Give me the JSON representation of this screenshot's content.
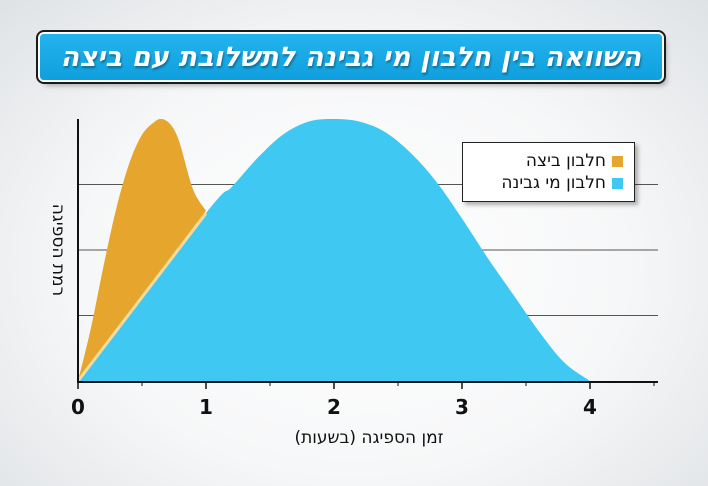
{
  "title": "השוואה בין חלבון מי גבינה לתשלובת עם ביצה",
  "chart_data": {
    "type": "area",
    "xlabel": "זמן הספיגה (בשעות)",
    "ylabel": "רמת הספיגה",
    "xlim": [
      0,
      4.5
    ],
    "ylim": [
      0,
      1
    ],
    "x_ticks": [
      "0",
      "1",
      "2",
      "3",
      "4"
    ],
    "x_minor_ticks": [
      0.5,
      1.5,
      2.5,
      3.5,
      4.5
    ],
    "y_ticks": [
      0.25,
      0.5,
      0.75
    ],
    "grid": "horizontal",
    "y_tick_labels": false,
    "legend_position": "top-right",
    "series": [
      {
        "name": "חלבון ביצה",
        "color": "#e6a52c",
        "x": [
          0,
          0.1,
          0.2,
          0.3,
          0.4,
          0.5,
          0.6,
          0.65,
          0.7,
          0.75,
          0.8,
          0.9,
          1.0
        ],
        "y": [
          0,
          0.2,
          0.44,
          0.66,
          0.83,
          0.94,
          0.99,
          1.0,
          0.99,
          0.96,
          0.9,
          0.73,
          0.65
        ]
      },
      {
        "name": "חלבון מי גבינה",
        "color": "#3ec8f2",
        "x": [
          0,
          1.0,
          1.2,
          1.4,
          1.6,
          1.8,
          2.0,
          2.2,
          2.4,
          2.6,
          2.8,
          3.0,
          3.2,
          3.4,
          3.6,
          3.8,
          4.0
        ],
        "y": [
          0,
          0.64,
          0.74,
          0.85,
          0.94,
          0.99,
          1.0,
          0.99,
          0.95,
          0.87,
          0.76,
          0.62,
          0.47,
          0.33,
          0.19,
          0.07,
          0
        ]
      }
    ]
  }
}
